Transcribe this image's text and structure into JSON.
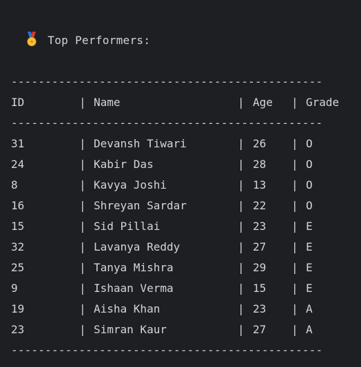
{
  "title": {
    "icon": "medal-icon",
    "text": "Top Performers:"
  },
  "separator": "----------------------------------------------",
  "pipe": "|",
  "table": {
    "headers": {
      "id": "ID",
      "name": "Name",
      "age": "Age",
      "grade": "Grade"
    },
    "rows": [
      {
        "id": "31",
        "name": "Devansh Tiwari",
        "age": "26",
        "grade": "O"
      },
      {
        "id": "24",
        "name": "Kabir Das",
        "age": "28",
        "grade": "O"
      },
      {
        "id": "8",
        "name": "Kavya Joshi",
        "age": "13",
        "grade": "O"
      },
      {
        "id": "16",
        "name": "Shreyan Sardar",
        "age": "22",
        "grade": "O"
      },
      {
        "id": "15",
        "name": "Sid Pillai",
        "age": "23",
        "grade": "E"
      },
      {
        "id": "32",
        "name": "Lavanya Reddy",
        "age": "27",
        "grade": "E"
      },
      {
        "id": "25",
        "name": "Tanya Mishra",
        "age": "29",
        "grade": "E"
      },
      {
        "id": "9",
        "name": "Ishaan Verma",
        "age": "15",
        "grade": "E"
      },
      {
        "id": "19",
        "name": "Aisha Khan",
        "age": "23",
        "grade": "A"
      },
      {
        "id": "23",
        "name": "Simran Kaur",
        "age": "27",
        "grade": "A"
      }
    ]
  },
  "colors": {
    "background": "#1e1f22",
    "text": "#d3d5da"
  }
}
